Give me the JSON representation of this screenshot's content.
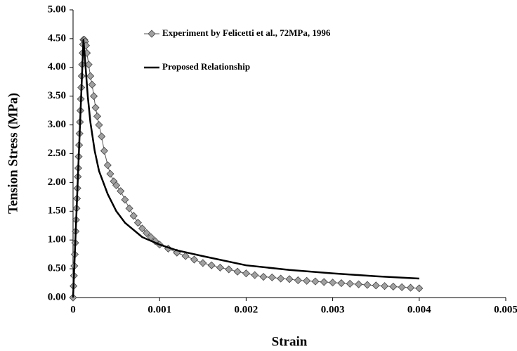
{
  "chart_data": {
    "type": "line",
    "xlabel": "Strain",
    "ylabel": "Tension Stress (MPa)",
    "xlim": [
      0,
      0.005
    ],
    "xticks": [
      0,
      0.001,
      0.002,
      0.003,
      0.004,
      0.005
    ],
    "ylim": [
      0,
      5
    ],
    "yticks": [
      {
        "value": 0,
        "label": "0.00"
      },
      {
        "value": 0.5,
        "label": "0.50"
      },
      {
        "value": 1,
        "label": "1.00"
      },
      {
        "value": 1.5,
        "label": "1.50"
      },
      {
        "value": 2,
        "label": "2.00"
      },
      {
        "value": 2.5,
        "label": "2.50"
      },
      {
        "value": 3,
        "label": "3.00"
      },
      {
        "value": 3.5,
        "label": "3.50"
      },
      {
        "value": 4,
        "label": "4.00"
      },
      {
        "value": 4.5,
        "label": "4.50"
      },
      {
        "value": 5,
        "label": "5.00"
      }
    ],
    "grid": false,
    "legend": "top",
    "series": [
      {
        "name": "Experiment by Felicetti et al., 72MPa, 1996",
        "color": "#a0a0a0",
        "marker": "diamond",
        "x": [
          0,
          5e-06,
          1e-05,
          1.5e-05,
          2e-05,
          2.5e-05,
          3e-05,
          3.5e-05,
          4e-05,
          4.5e-05,
          5e-05,
          5.5e-05,
          6e-05,
          6.5e-05,
          7e-05,
          7.5e-05,
          8e-05,
          8.5e-05,
          9e-05,
          9.5e-05,
          0.0001,
          0.000105,
          0.00011,
          0.000115,
          0.00012,
          0.00013,
          0.00014,
          0.00015,
          0.00016,
          0.00018,
          0.0002,
          0.00022,
          0.00024,
          0.00026,
          0.00028,
          0.0003,
          0.00033,
          0.00036,
          0.0004,
          0.00043,
          0.00047,
          0.0005,
          0.00055,
          0.0006,
          0.00065,
          0.0007,
          0.00075,
          0.0008,
          0.00085,
          0.0009,
          0.00095,
          0.001,
          0.0011,
          0.0012,
          0.0013,
          0.0014,
          0.0015,
          0.0016,
          0.0017,
          0.0018,
          0.0019,
          0.002,
          0.0021,
          0.0022,
          0.0023,
          0.0024,
          0.0025,
          0.0026,
          0.0027,
          0.0028,
          0.0029,
          0.003,
          0.0031,
          0.0032,
          0.0033,
          0.0034,
          0.0035,
          0.0036,
          0.0037,
          0.0038,
          0.0039,
          0.004
        ],
        "values": [
          0,
          0.2,
          0.38,
          0.55,
          0.75,
          0.95,
          1.15,
          1.35,
          1.55,
          1.72,
          1.9,
          2.1,
          2.25,
          2.45,
          2.65,
          2.85,
          3.05,
          3.25,
          3.45,
          3.65,
          3.85,
          4.05,
          4.25,
          4.4,
          4.48,
          4.48,
          4.45,
          4.38,
          4.25,
          4.05,
          3.85,
          3.7,
          3.5,
          3.3,
          3.15,
          3.0,
          2.8,
          2.55,
          2.3,
          2.15,
          2.02,
          1.95,
          1.85,
          1.7,
          1.55,
          1.42,
          1.3,
          1.2,
          1.12,
          1.05,
          0.98,
          0.92,
          0.85,
          0.78,
          0.72,
          0.66,
          0.6,
          0.56,
          0.52,
          0.49,
          0.45,
          0.42,
          0.39,
          0.36,
          0.35,
          0.33,
          0.32,
          0.3,
          0.29,
          0.28,
          0.27,
          0.26,
          0.25,
          0.24,
          0.23,
          0.22,
          0.21,
          0.2,
          0.19,
          0.18,
          0.17,
          0.16
        ]
      },
      {
        "name": "Proposed Relationship",
        "color": "#000000",
        "marker": "none",
        "x": [
          0,
          0.00012,
          0.00013,
          0.00015,
          0.00017,
          0.0002,
          0.00025,
          0.0003,
          0.0004,
          0.0005,
          0.0006,
          0.0008,
          0.001,
          0.0012,
          0.0015,
          0.002,
          0.0025,
          0.003,
          0.0035,
          0.004
        ],
        "values": [
          0,
          4.48,
          4.3,
          3.9,
          3.5,
          3.05,
          2.55,
          2.2,
          1.8,
          1.5,
          1.3,
          1.05,
          0.92,
          0.82,
          0.72,
          0.56,
          0.48,
          0.42,
          0.37,
          0.33
        ]
      }
    ]
  }
}
